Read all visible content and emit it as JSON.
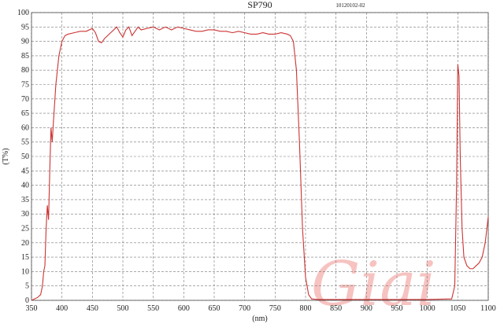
{
  "chart_data": {
    "type": "line",
    "title": "SP790",
    "subtitle": "10120102-02",
    "x_label": "(nm)",
    "y_label": "(T%)",
    "watermark": "Giai",
    "x": [
      350,
      360,
      365,
      368,
      370,
      372,
      374,
      376,
      378,
      380,
      382,
      384,
      386,
      390,
      395,
      400,
      405,
      410,
      420,
      430,
      440,
      450,
      455,
      460,
      465,
      470,
      480,
      490,
      495,
      500,
      505,
      510,
      515,
      520,
      525,
      530,
      540,
      550,
      560,
      570,
      580,
      590,
      600,
      610,
      620,
      630,
      640,
      650,
      660,
      670,
      680,
      690,
      700,
      710,
      720,
      730,
      740,
      750,
      760,
      770,
      775,
      780,
      785,
      790,
      795,
      800,
      805,
      810,
      820,
      900,
      1000,
      1040,
      1045,
      1048,
      1050,
      1052,
      1054,
      1057,
      1060,
      1065,
      1070,
      1075,
      1080,
      1085,
      1090,
      1095,
      1100
    ],
    "series": [
      {
        "name": "SP790",
        "color": "#cc3333",
        "values": [
          0,
          1,
          2,
          5,
          10,
          12,
          25,
          33,
          28,
          45,
          60,
          55,
          62,
          75,
          85,
          90,
          92,
          92.5,
          93,
          93.5,
          93.5,
          94.5,
          93,
          90,
          89.5,
          91,
          93,
          95,
          93,
          91.5,
          94,
          95,
          92,
          93.5,
          95,
          94,
          94.5,
          95,
          94,
          95,
          94,
          95,
          94.5,
          94,
          93.5,
          93.5,
          94,
          94,
          93.5,
          93.5,
          93,
          93.5,
          93,
          92.5,
          92.5,
          93,
          92.5,
          92.5,
          93,
          92.5,
          92,
          90,
          80,
          55,
          25,
          8,
          2,
          0.5,
          0.3,
          0.3,
          0.3,
          0.5,
          5,
          40,
          82,
          78,
          50,
          25,
          15,
          12,
          11,
          11,
          12,
          13,
          15,
          20,
          29
        ]
      }
    ],
    "xlim": [
      350,
      1100
    ],
    "ylim": [
      0,
      100
    ],
    "xticks": [
      350,
      400,
      450,
      500,
      550,
      600,
      650,
      700,
      750,
      800,
      850,
      900,
      950,
      1000,
      1050,
      1100
    ],
    "yticks": [
      0,
      5,
      10,
      15,
      20,
      25,
      30,
      35,
      40,
      45,
      50,
      55,
      60,
      65,
      70,
      75,
      80,
      85,
      90,
      95,
      100
    ],
    "grid": true
  }
}
